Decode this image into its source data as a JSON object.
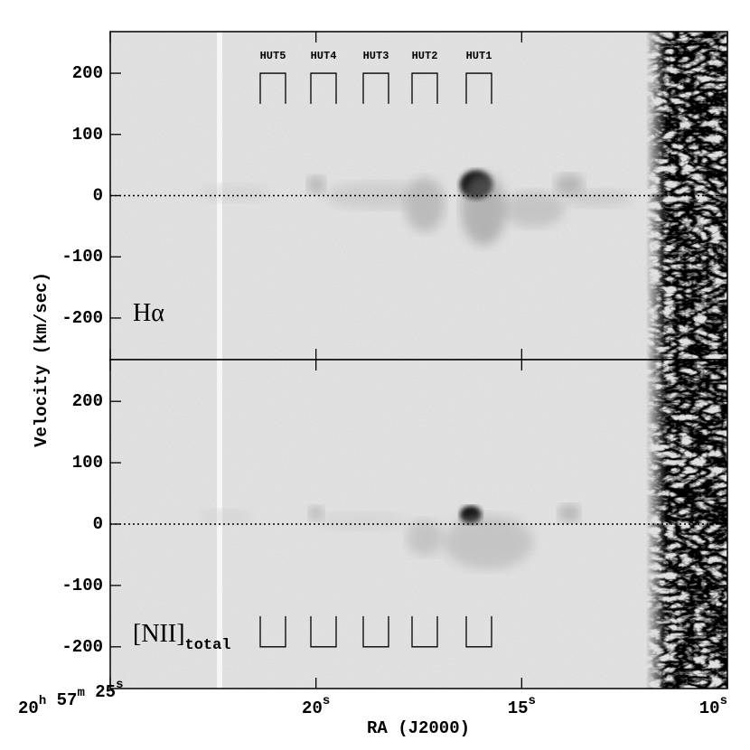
{
  "chart_data": [
    {
      "type": "image",
      "panel_label": "Hα",
      "ylabel": "Velocity (km/sec)",
      "ylim": [
        -268,
        268
      ],
      "yticks": [
        -200,
        -100,
        0,
        100,
        200
      ],
      "xlim": [
        25,
        10
      ],
      "xticks": [
        25,
        20,
        15,
        10
      ],
      "apertures": [
        "HUT5",
        "HUT4",
        "HUT3",
        "HUT2",
        "HUT1"
      ],
      "reference_line": 0
    },
    {
      "type": "image",
      "panel_label": "[NII]",
      "panel_label_sub": "total",
      "xlabel": "RA (J2000)",
      "ylim": [
        -268,
        268
      ],
      "yticks": [
        -200,
        -100,
        0,
        100,
        200
      ],
      "xlim": [
        25,
        10
      ],
      "xticks": [
        {
          "value": 25,
          "label": "20h 57m 25s"
        },
        {
          "value": 20,
          "label": "20s"
        },
        {
          "value": 15,
          "label": "15s"
        },
        {
          "value": 10,
          "label": "10s"
        }
      ],
      "reference_line": 0
    }
  ]
}
